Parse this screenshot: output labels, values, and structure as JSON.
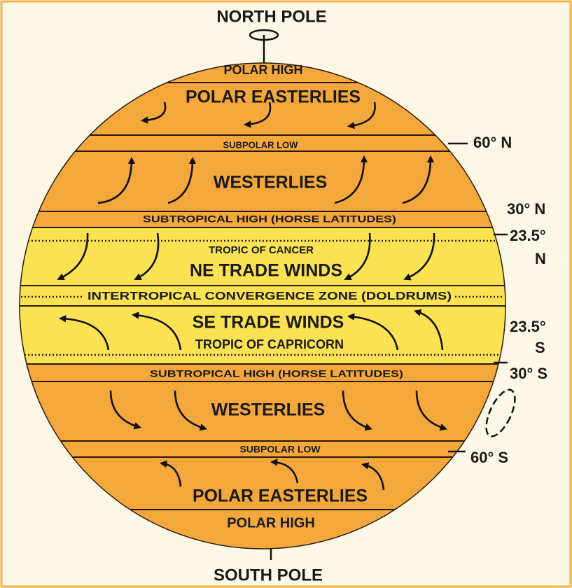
{
  "poles": {
    "north": "NORTH POLE",
    "south": "SOUTH POLE"
  },
  "zones": [
    "POLAR HIGH",
    "POLAR EASTERLIES",
    "SUBPOLAR LOW",
    "WESTERLIES",
    "SUBTROPICAL HIGH (HORSE LATITUDES)",
    "TROPIC OF CANCER",
    "NE TRADE WINDS",
    "INTERTROPICAL CONVERGENCE  ZONE (DOLDRUMS)",
    "SE TRADE WINDS",
    "TROPIC OF CAPRICORN",
    "SUBTROPICAL HIGH (HORSE LATITUDES)",
    "WESTERLIES",
    "SUBPOLAR LOW",
    "POLAR EASTERLIES",
    "POLAR HIGH"
  ],
  "latitudes": [
    [
      "60° N"
    ],
    [
      "30° N"
    ],
    [
      "23.5°",
      "N"
    ],
    [
      "23.5°",
      "S"
    ],
    [
      "30° S"
    ],
    [
      "60° S"
    ]
  ]
}
